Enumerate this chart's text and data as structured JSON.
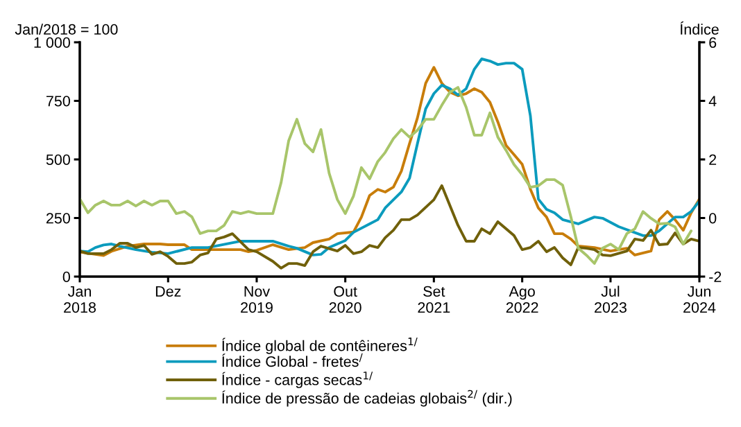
{
  "chart_data": {
    "type": "line",
    "ylabel": "Jan/2018 = 100",
    "y2label": "Índice",
    "xlim": [
      "2018-01",
      "2024-06"
    ],
    "xticks": [
      {
        "value": "2018-01",
        "label": "Jan\n2018"
      },
      {
        "value": "2018-12",
        "label": "Dez"
      },
      {
        "value": "2019-11",
        "label": "Nov\n2019"
      },
      {
        "value": "2020-10",
        "label": "Out\n2020"
      },
      {
        "value": "2021-09",
        "label": "Set\n2021"
      },
      {
        "value": "2022-08",
        "label": "Ago\n2022"
      },
      {
        "value": "2023-07",
        "label": "Jul\n2023"
      },
      {
        "value": "2024-06",
        "label": "Jun\n2024"
      }
    ],
    "ylim": [
      0,
      1000
    ],
    "yticks": [
      0,
      250,
      500,
      750,
      {
        "value": 1000,
        "label": "1 000"
      }
    ],
    "y2lim": [
      -2,
      6
    ],
    "y2ticks": [
      -2,
      0,
      2,
      4,
      6
    ],
    "grid": false,
    "legend": "bottom",
    "marker": "none",
    "line_style": "solid",
    "series": [
      {
        "name": "Índice global de contêineres$^{1/}$",
        "color": "#c87d0a",
        "x": [
          "2018-01",
          "2018-04",
          "2018-05",
          "2018-07",
          "2018-09",
          "2018-11",
          "2018-12",
          "2019-02",
          "2019-03",
          "2019-09",
          "2019-10",
          "2019-11",
          "2020-01",
          "2020-03",
          "2020-05",
          "2020-06",
          "2020-08",
          "2020-09",
          "2020-11",
          "2020-12",
          "2021-01",
          "2021-02",
          "2021-03",
          "2021-04",
          "2021-05",
          "2021-06",
          "2021-07",
          "2021-08",
          "2021-09",
          "2021-10",
          "2021-11",
          "2021-12",
          "2022-01",
          "2022-02",
          "2022-03",
          "2022-04",
          "2022-05",
          "2022-06",
          "2022-07",
          "2022-08",
          "2022-09",
          "2022-10",
          "2022-11",
          "2022-12",
          "2023-01",
          "2023-02",
          "2023-03",
          "2023-05",
          "2023-07",
          "2023-09",
          "2023-10",
          "2023-12",
          "2024-01",
          "2024-02",
          "2024-03",
          "2024-04",
          "2024-05",
          "2024-06"
        ],
        "values": [
          105,
          90,
          108,
          130,
          139,
          139,
          136,
          136,
          115,
          115,
          106,
          112,
          136,
          115,
          124,
          145,
          160,
          183,
          190,
          254,
          346,
          372,
          361,
          382,
          450,
          568,
          678,
          825,
          893,
          825,
          787,
          772,
          781,
          802,
          787,
          744,
          660,
          560,
          521,
          479,
          373,
          293,
          254,
          183,
          183,
          160,
          130,
          124,
          109,
          121,
          92,
          109,
          243,
          278,
          243,
          198,
          272,
          331
        ]
      },
      {
        "name": "Índice Global - fretes$^{/}$",
        "color": "#0b9bbd",
        "x": [
          "2018-01",
          "2018-02",
          "2018-03",
          "2018-04",
          "2018-05",
          "2018-06",
          "2018-08",
          "2018-10",
          "2018-12",
          "2019-03",
          "2019-05",
          "2019-09",
          "2020-01",
          "2020-03",
          "2020-04",
          "2020-06",
          "2020-07",
          "2020-08",
          "2020-10",
          "2020-11",
          "2021-01",
          "2021-02",
          "2021-03",
          "2021-05",
          "2021-06",
          "2021-07",
          "2021-08",
          "2021-09",
          "2021-10",
          "2021-11",
          "2021-12",
          "2022-01",
          "2022-02",
          "2022-03",
          "2022-04",
          "2022-05",
          "2022-06",
          "2022-07",
          "2022-08",
          "2022-09",
          "2022-10",
          "2022-11",
          "2022-12",
          "2023-01",
          "2023-03",
          "2023-04",
          "2023-05",
          "2023-06",
          "2023-08",
          "2023-11",
          "2023-12",
          "2024-01",
          "2024-03",
          "2024-04",
          "2024-05",
          "2024-06"
        ],
        "values": [
          109,
          106,
          124,
          135,
          139,
          130,
          115,
          104,
          98,
          124,
          124,
          151,
          151,
          130,
          121,
          92,
          95,
          124,
          154,
          189,
          225,
          243,
          293,
          361,
          420,
          568,
          716,
          781,
          817,
          802,
          775,
          802,
          885,
          929,
          920,
          905,
          911,
          911,
          885,
          686,
          331,
          287,
          272,
          243,
          225,
          240,
          254,
          249,
          213,
          175,
          175,
          195,
          254,
          254,
          278,
          322
        ]
      },
      {
        "name": "Índice - cargas secas$^{1/}$",
        "color": "#70600a",
        "x": [
          "2018-01",
          "2018-02",
          "2018-04",
          "2018-05",
          "2018-06",
          "2018-07",
          "2018-08",
          "2018-09",
          "2018-10",
          "2018-11",
          "2018-12",
          "2019-01",
          "2019-02",
          "2019-03",
          "2019-04",
          "2019-05",
          "2019-06",
          "2019-07",
          "2019-08",
          "2019-10",
          "2019-11",
          "2020-01",
          "2020-02",
          "2020-03",
          "2020-04",
          "2020-05",
          "2020-06",
          "2020-07",
          "2020-09",
          "2020-10",
          "2020-11",
          "2020-12",
          "2021-01",
          "2021-02",
          "2021-03",
          "2021-04",
          "2021-05",
          "2021-06",
          "2021-07",
          "2021-09",
          "2021-10",
          "2021-12",
          "2022-01",
          "2022-02",
          "2022-03",
          "2022-04",
          "2022-05",
          "2022-06",
          "2022-07",
          "2022-08",
          "2022-09",
          "2022-10",
          "2022-11",
          "2022-12",
          "2023-01",
          "2023-02",
          "2023-03",
          "2023-04",
          "2023-05",
          "2023-06",
          "2023-07",
          "2023-09",
          "2023-10",
          "2023-11",
          "2023-12",
          "2024-01",
          "2024-02",
          "2024-03",
          "2024-04",
          "2024-05",
          "2024-06"
        ],
        "values": [
          109,
          98,
          98,
          115,
          142,
          142,
          124,
          133,
          95,
          106,
          86,
          56,
          56,
          62,
          92,
          101,
          160,
          169,
          183,
          115,
          106,
          65,
          36,
          56,
          56,
          47,
          106,
          130,
          109,
          133,
          98,
          106,
          133,
          124,
          166,
          198,
          243,
          243,
          263,
          328,
          388,
          219,
          151,
          151,
          204,
          183,
          234,
          204,
          175,
          115,
          124,
          151,
          106,
          124,
          80,
          50,
          124,
          121,
          115,
          92,
          89,
          109,
          160,
          154,
          198,
          136,
          139,
          186,
          139,
          160,
          151
        ]
      },
      {
        "name": "Índice de pressão de cadeias globais$^{2/}$ (dir.)",
        "color": "#a8c56a",
        "axis": "y2",
        "x": [
          "2018-01",
          "2018-02",
          "2018-03",
          "2018-04",
          "2018-05",
          "2018-06",
          "2018-07",
          "2018-08",
          "2018-09",
          "2018-10",
          "2018-11",
          "2018-12",
          "2019-01",
          "2019-02",
          "2019-03",
          "2019-04",
          "2019-05",
          "2019-06",
          "2019-07",
          "2019-08",
          "2019-09",
          "2019-10",
          "2019-11",
          "2020-01",
          "2020-02",
          "2020-03",
          "2020-04",
          "2020-05",
          "2020-06",
          "2020-07",
          "2020-08",
          "2020-09",
          "2020-10",
          "2020-11",
          "2020-12",
          "2021-01",
          "2021-02",
          "2021-03",
          "2021-04",
          "2021-05",
          "2021-06",
          "2021-07",
          "2021-08",
          "2021-09",
          "2021-10",
          "2021-11",
          "2021-12",
          "2022-01",
          "2022-02",
          "2022-03",
          "2022-04",
          "2022-05",
          "2022-06",
          "2022-07",
          "2022-08",
          "2022-09",
          "2022-10",
          "2022-11",
          "2022-12",
          "2023-01",
          "2023-02",
          "2023-03",
          "2023-04",
          "2023-05",
          "2023-06",
          "2023-07",
          "2023-08",
          "2023-09",
          "2023-10",
          "2023-11",
          "2023-12",
          "2024-01",
          "2024-02",
          "2024-03",
          "2024-04",
          "2024-05"
        ],
        "values": [
          0.65,
          0.18,
          0.44,
          0.58,
          0.44,
          0.44,
          0.58,
          0.41,
          0.58,
          0.44,
          0.58,
          0.58,
          0.15,
          0.22,
          0.04,
          -0.53,
          -0.44,
          -0.44,
          -0.25,
          0.22,
          0.15,
          0.22,
          0.15,
          0.15,
          1.2,
          2.64,
          3.37,
          2.54,
          2.26,
          3.02,
          1.53,
          0.63,
          0.15,
          0.75,
          1.72,
          1.34,
          1.93,
          2.24,
          2.71,
          3.02,
          2.76,
          3.0,
          3.37,
          3.37,
          3.85,
          4.3,
          4.46,
          3.78,
          2.83,
          2.83,
          3.59,
          2.76,
          2.31,
          1.83,
          1.48,
          1.05,
          1.1,
          1.31,
          1.31,
          1.12,
          0.04,
          -1.03,
          -1.27,
          -1.55,
          -1.03,
          -0.89,
          -1.08,
          -0.53,
          -0.37,
          0.22,
          -0.01,
          -0.2,
          -0.18,
          -0.3,
          -0.89,
          -0.44
        ]
      }
    ]
  }
}
